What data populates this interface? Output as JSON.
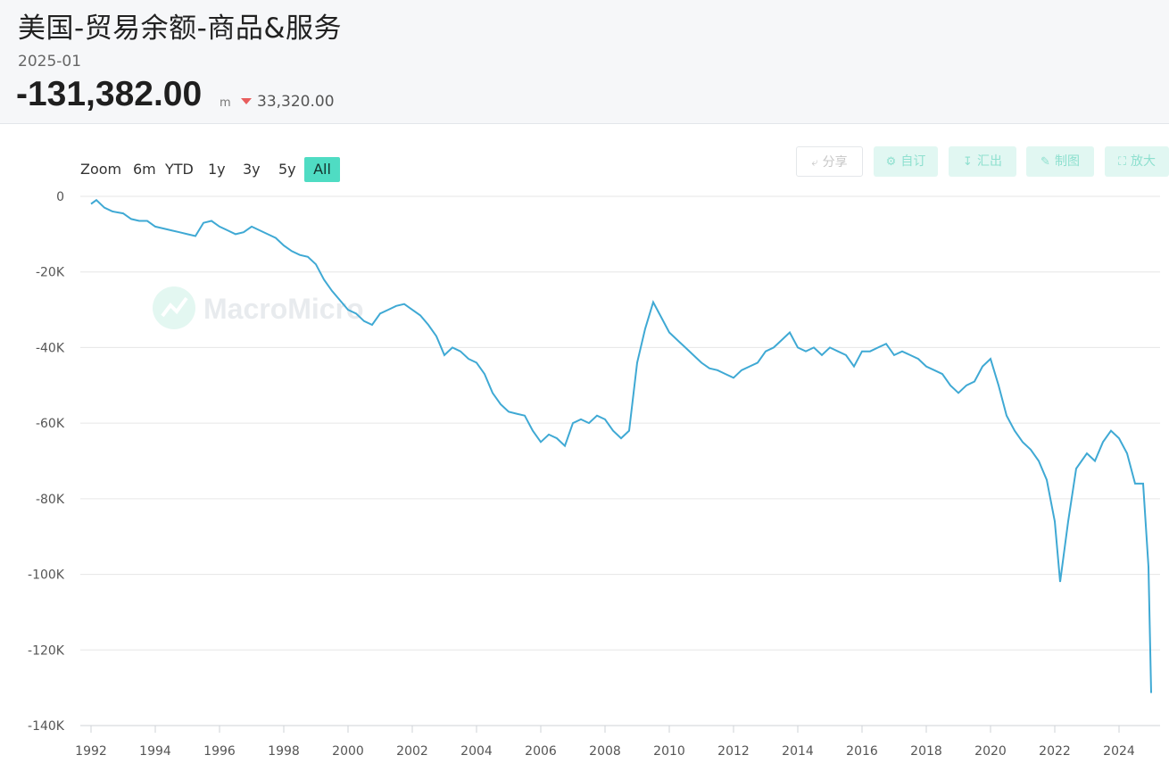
{
  "header": {
    "title": "美国-贸易余额-商品&服务",
    "date": "2025-01",
    "value": "-131,382.00",
    "unit": "m",
    "change": "33,320.00"
  },
  "toolbar": {
    "zoom_label": "Zoom",
    "ranges": [
      "6m",
      "YTD",
      "1y",
      "3y",
      "5y",
      "All"
    ],
    "active_range": "All",
    "buttons": [
      {
        "label": "分享",
        "icon": "share-icon"
      },
      {
        "label": "自订",
        "icon": "gear-icon"
      },
      {
        "label": "汇出",
        "icon": "download-icon"
      },
      {
        "label": "制图",
        "icon": "pencil-icon"
      },
      {
        "label": "放大",
        "icon": "expand-icon"
      }
    ]
  },
  "watermark": "MacroMicro",
  "colors": {
    "line": "#3fa9d4",
    "accent": "#4fdcc3",
    "down": "#e85d5d"
  },
  "chart_data": {
    "type": "line",
    "title": "",
    "xlabel": "",
    "ylabel": "",
    "ylim": [
      -140000,
      0
    ],
    "y_ticks": [
      0,
      -20000,
      -40000,
      -60000,
      -80000,
      -100000,
      -120000,
      -140000
    ],
    "y_tick_labels": [
      "0",
      "-20K",
      "-40K",
      "-60K",
      "-80K",
      "-100K",
      "-120K",
      "-140K"
    ],
    "xlim": [
      "1992-01",
      "2025-04"
    ],
    "x_ticks": [
      "1992",
      "1994",
      "1996",
      "1998",
      "2000",
      "2002",
      "2004",
      "2006",
      "2008",
      "2010",
      "2012",
      "2014",
      "2016",
      "2018",
      "2020",
      "2022",
      "2024"
    ],
    "grid": true,
    "legend": "none",
    "series": [
      {
        "x": [
          "1992-01",
          "1992-03",
          "1992-06",
          "1992-09",
          "1993-01",
          "1993-04",
          "1993-07",
          "1993-10",
          "1994-01",
          "1994-04",
          "1994-07",
          "1994-10",
          "1995-01",
          "1995-04",
          "1995-07",
          "1995-10",
          "1996-01",
          "1996-04",
          "1996-07",
          "1996-10",
          "1997-01",
          "1997-04",
          "1997-07",
          "1997-10",
          "1998-01",
          "1998-04",
          "1998-07",
          "1998-10",
          "1999-01",
          "1999-04",
          "1999-07",
          "1999-10",
          "2000-01",
          "2000-04",
          "2000-07",
          "2000-10",
          "2001-01",
          "2001-04",
          "2001-07",
          "2001-10",
          "2002-01",
          "2002-04",
          "2002-07",
          "2002-10",
          "2003-01",
          "2003-04",
          "2003-07",
          "2003-10",
          "2004-01",
          "2004-04",
          "2004-07",
          "2004-10",
          "2005-01",
          "2005-04",
          "2005-07",
          "2005-10",
          "2006-01",
          "2006-04",
          "2006-07",
          "2006-10",
          "2007-01",
          "2007-04",
          "2007-07",
          "2007-10",
          "2008-01",
          "2008-04",
          "2008-07",
          "2008-10",
          "2009-01",
          "2009-04",
          "2009-07",
          "2009-10",
          "2010-01",
          "2010-04",
          "2010-07",
          "2010-10",
          "2011-01",
          "2011-04",
          "2011-07",
          "2011-10",
          "2012-01",
          "2012-04",
          "2012-07",
          "2012-10",
          "2013-01",
          "2013-04",
          "2013-07",
          "2013-10",
          "2014-01",
          "2014-04",
          "2014-07",
          "2014-10",
          "2015-01",
          "2015-04",
          "2015-07",
          "2015-10",
          "2016-01",
          "2016-04",
          "2016-07",
          "2016-10",
          "2017-01",
          "2017-04",
          "2017-07",
          "2017-10",
          "2018-01",
          "2018-04",
          "2018-07",
          "2018-10",
          "2019-01",
          "2019-04",
          "2019-07",
          "2019-10",
          "2020-01",
          "2020-04",
          "2020-07",
          "2020-10",
          "2021-01",
          "2021-04",
          "2021-07",
          "2021-10",
          "2022-01",
          "2022-03",
          "2022-06",
          "2022-09",
          "2023-01",
          "2023-04",
          "2023-07",
          "2023-10",
          "2024-01",
          "2024-04",
          "2024-07",
          "2024-10",
          "2024-12",
          "2025-01"
        ],
        "values": [
          -2000,
          -1000,
          -3000,
          -4000,
          -4500,
          -6000,
          -6500,
          -6500,
          -8000,
          -8500,
          -9000,
          -9500,
          -10000,
          -10500,
          -7000,
          -6500,
          -8000,
          -9000,
          -10000,
          -9500,
          -8000,
          -9000,
          -10000,
          -11000,
          -13000,
          -14500,
          -15500,
          -16000,
          -18000,
          -22000,
          -25000,
          -27500,
          -30000,
          -31000,
          -33000,
          -34000,
          -31000,
          -30000,
          -29000,
          -28500,
          -30000,
          -31500,
          -34000,
          -37000,
          -42000,
          -40000,
          -41000,
          -43000,
          -44000,
          -47000,
          -52000,
          -55000,
          -57000,
          -57500,
          -58000,
          -62000,
          -65000,
          -63000,
          -64000,
          -66000,
          -60000,
          -59000,
          -60000,
          -58000,
          -59000,
          -62000,
          -64000,
          -62000,
          -44000,
          -35000,
          -28000,
          -32000,
          -36000,
          -38000,
          -40000,
          -42000,
          -44000,
          -45500,
          -46000,
          -47000,
          -48000,
          -46000,
          -45000,
          -44000,
          -41000,
          -40000,
          -38000,
          -36000,
          -40000,
          -41000,
          -40000,
          -42000,
          -40000,
          -41000,
          -42000,
          -45000,
          -41000,
          -41000,
          -40000,
          -39000,
          -42000,
          -41000,
          -42000,
          -43000,
          -45000,
          -46000,
          -47000,
          -50000,
          -52000,
          -50000,
          -49000,
          -45000,
          -43000,
          -50000,
          -58000,
          -62000,
          -65000,
          -67000,
          -70000,
          -75000,
          -86000,
          -102000,
          -86000,
          -72000,
          -68000,
          -70000,
          -65000,
          -62000,
          -64000,
          -68000,
          -76000,
          -76000,
          -98000,
          -131382
        ]
      }
    ]
  }
}
